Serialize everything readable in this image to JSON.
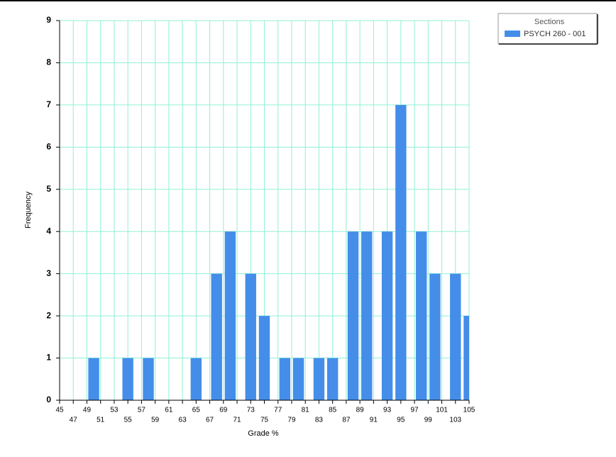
{
  "chart_data": {
    "type": "bar",
    "x_label": "Grade %",
    "y_label": "Frequency",
    "legend_title": "Sections",
    "legend_position": "top-right",
    "grid": true,
    "x": [
      50,
      55,
      58,
      65,
      68,
      70,
      73,
      75,
      78,
      80,
      83,
      85,
      88,
      90,
      93,
      95,
      98,
      100,
      103,
      105
    ],
    "series": [
      {
        "name": "PSYCH 260 - 001",
        "color": "#448eea",
        "values": [
          1,
          1,
          1,
          1,
          3,
          4,
          3,
          2,
          1,
          1,
          1,
          1,
          4,
          4,
          4,
          7,
          4,
          3,
          3,
          2
        ]
      }
    ],
    "xlim": [
      45,
      105
    ],
    "xticks": [
      45,
      47,
      49,
      51,
      53,
      55,
      57,
      59,
      61,
      63,
      65,
      67,
      69,
      71,
      73,
      75,
      77,
      79,
      81,
      83,
      85,
      87,
      89,
      91,
      93,
      95,
      97,
      99,
      101,
      103,
      105
    ],
    "ylim": [
      0,
      9
    ],
    "yticks": [
      0,
      1,
      2,
      3,
      4,
      5,
      6,
      7,
      8,
      9
    ]
  }
}
